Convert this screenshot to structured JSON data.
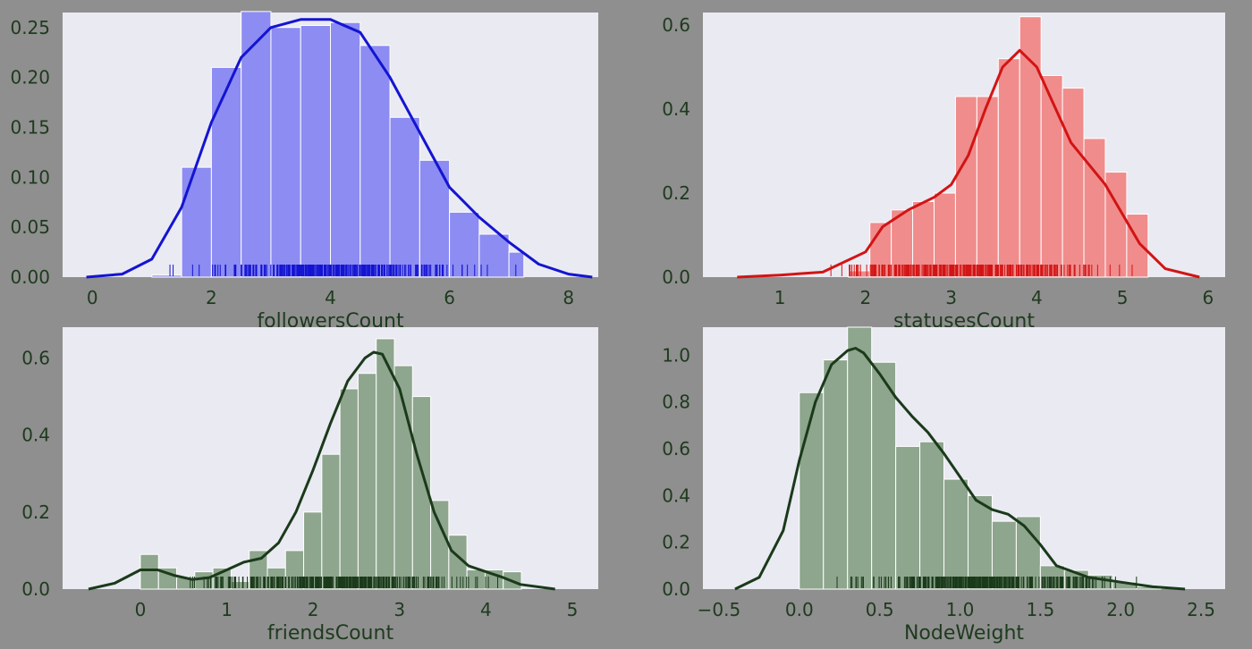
{
  "chart_data": [
    {
      "type": "bar",
      "xlabel": "followersCount",
      "ylabel": "",
      "xlim": [
        -0.5,
        8.5
      ],
      "ylim": [
        0,
        0.265
      ],
      "xticks": [
        0,
        2,
        4,
        6,
        8
      ],
      "xtick_labels": [
        "0",
        "2",
        "4",
        "6",
        "8"
      ],
      "yticks": [
        0,
        0.05,
        0.1,
        0.15,
        0.2,
        0.25
      ],
      "ytick_labels": [
        "0.00",
        "0.05",
        "0.10",
        "0.15",
        "0.20",
        "0.25"
      ],
      "bar_color": "#8c8cf2",
      "line_color": "#1414d2",
      "rug_color": "#1414d2",
      "bins": {
        "edges": [
          1.0,
          1.5,
          2.0,
          2.5,
          3.0,
          3.5,
          4.0,
          4.5,
          5.0,
          5.5,
          6.0,
          6.5,
          7.0,
          7.25
        ],
        "values": [
          0.002,
          0.11,
          0.21,
          0.266,
          0.25,
          0.252,
          0.255,
          0.232,
          0.16,
          0.117,
          0.065,
          0.043,
          0.025
        ]
      },
      "kde": {
        "x": [
          -0.1,
          0.5,
          1.0,
          1.5,
          2.0,
          2.5,
          3.0,
          3.5,
          4.0,
          4.5,
          5.0,
          5.5,
          6.0,
          6.5,
          7.0,
          7.5,
          8.0,
          8.4
        ],
        "y": [
          0.0,
          0.003,
          0.018,
          0.07,
          0.155,
          0.22,
          0.25,
          0.258,
          0.258,
          0.245,
          0.2,
          0.145,
          0.09,
          0.06,
          0.035,
          0.013,
          0.003,
          0.0
        ]
      },
      "rug_range": [
        1.0,
        7.2
      ]
    },
    {
      "type": "bar",
      "xlabel": "statusesCount",
      "ylabel": "",
      "xlim": [
        0.1,
        6.2
      ],
      "ylim": [
        0,
        0.63
      ],
      "xticks": [
        1,
        2,
        3,
        4,
        5,
        6
      ],
      "xtick_labels": [
        "1",
        "2",
        "3",
        "4",
        "5",
        "6"
      ],
      "yticks": [
        0,
        0.2,
        0.4,
        0.6
      ],
      "ytick_labels": [
        "0.0",
        "0.2",
        "0.4",
        "0.6"
      ],
      "bar_color": "#f08c8c",
      "line_color": "#d21414",
      "rug_color": "#d21414",
      "bins": {
        "edges": [
          1.8,
          2.05,
          2.3,
          2.55,
          2.8,
          3.05,
          3.3,
          3.55,
          3.8,
          4.05,
          4.3,
          4.55,
          4.8,
          5.05,
          5.3
        ],
        "values": [
          0.015,
          0.13,
          0.16,
          0.18,
          0.2,
          0.43,
          0.43,
          0.52,
          0.62,
          0.48,
          0.45,
          0.33,
          0.25,
          0.15
        ]
      },
      "kde": {
        "x": [
          0.5,
          1.0,
          1.5,
          2.0,
          2.2,
          2.5,
          2.8,
          3.0,
          3.2,
          3.4,
          3.6,
          3.8,
          4.0,
          4.2,
          4.4,
          4.6,
          4.8,
          5.0,
          5.2,
          5.5,
          5.9
        ],
        "y": [
          0.0,
          0.005,
          0.012,
          0.06,
          0.12,
          0.16,
          0.19,
          0.22,
          0.29,
          0.4,
          0.5,
          0.54,
          0.5,
          0.41,
          0.32,
          0.27,
          0.22,
          0.15,
          0.08,
          0.02,
          0.0
        ]
      },
      "rug_range": [
        1.1,
        5.3
      ]
    },
    {
      "type": "bar",
      "xlabel": "friendsCount",
      "ylabel": "",
      "xlim": [
        -0.9,
        5.3
      ],
      "ylim": [
        0,
        0.68
      ],
      "xticks": [
        0,
        1,
        2,
        3,
        4,
        5
      ],
      "xtick_labels": [
        "0",
        "1",
        "2",
        "3",
        "4",
        "5"
      ],
      "yticks": [
        0,
        0.2,
        0.4,
        0.6
      ],
      "ytick_labels": [
        "0.0",
        "0.2",
        "0.4",
        "0.6"
      ],
      "bar_color": "#8ea58e",
      "line_color": "#1a3a1a",
      "rug_color": "#1a3a1a",
      "bins": {
        "edges": [
          0,
          0.21,
          0.42,
          0.63,
          0.84,
          1.05,
          1.26,
          1.47,
          1.68,
          1.89,
          2.1,
          2.31,
          2.52,
          2.73,
          2.94,
          3.15,
          3.36,
          3.57,
          3.78,
          3.99,
          4.2,
          4.41
        ],
        "values": [
          0.09,
          0.055,
          0.03,
          0.045,
          0.055,
          0.02,
          0.1,
          0.055,
          0.1,
          0.2,
          0.35,
          0.52,
          0.56,
          0.65,
          0.58,
          0.5,
          0.23,
          0.14,
          0.05,
          0.05,
          0.045
        ]
      },
      "kde": {
        "x": [
          -0.6,
          -0.3,
          0.0,
          0.2,
          0.4,
          0.6,
          0.8,
          1.0,
          1.2,
          1.4,
          1.6,
          1.8,
          2.0,
          2.2,
          2.4,
          2.6,
          2.7,
          2.8,
          3.0,
          3.2,
          3.4,
          3.6,
          3.8,
          4.0,
          4.2,
          4.4,
          4.8
        ],
        "y": [
          0.0,
          0.015,
          0.05,
          0.05,
          0.035,
          0.025,
          0.03,
          0.05,
          0.07,
          0.08,
          0.12,
          0.2,
          0.31,
          0.43,
          0.54,
          0.6,
          0.615,
          0.61,
          0.52,
          0.35,
          0.2,
          0.1,
          0.06,
          0.045,
          0.03,
          0.012,
          0.0
        ]
      },
      "rug_range": [
        0.0,
        4.4
      ]
    },
    {
      "type": "bar",
      "xlabel": "NodeWeight",
      "ylabel": "",
      "xlim": [
        -0.6,
        2.65
      ],
      "ylim": [
        0,
        1.12
      ],
      "xticks": [
        -0.5,
        0.0,
        0.5,
        1.0,
        1.5,
        2.0,
        2.5
      ],
      "xtick_labels": [
        "−0.5",
        "0.0",
        "0.5",
        "1.0",
        "1.5",
        "2.0",
        "2.5"
      ],
      "yticks": [
        0,
        0.2,
        0.4,
        0.6,
        0.8,
        1.0
      ],
      "ytick_labels": [
        "0.0",
        "0.2",
        "0.4",
        "0.6",
        "0.8",
        "1.0"
      ],
      "bar_color": "#8ea58e",
      "line_color": "#1a3a1a",
      "rug_color": "#1a3a1a",
      "bins": {
        "edges": [
          0.0,
          0.15,
          0.3,
          0.45,
          0.6,
          0.75,
          0.9,
          1.05,
          1.2,
          1.35,
          1.5,
          1.65,
          1.8,
          1.95,
          2.1,
          2.25
        ],
        "values": [
          0.84,
          0.98,
          1.12,
          0.97,
          0.61,
          0.63,
          0.47,
          0.4,
          0.29,
          0.31,
          0.1,
          0.08,
          0.06,
          0.03,
          0.01
        ]
      },
      "kde": {
        "x": [
          -0.4,
          -0.25,
          -0.1,
          0.0,
          0.1,
          0.2,
          0.3,
          0.35,
          0.4,
          0.5,
          0.6,
          0.7,
          0.8,
          0.9,
          1.0,
          1.1,
          1.2,
          1.3,
          1.4,
          1.5,
          1.6,
          1.8,
          2.0,
          2.2,
          2.4
        ],
        "y": [
          0.0,
          0.05,
          0.25,
          0.55,
          0.8,
          0.96,
          1.02,
          1.03,
          1.01,
          0.92,
          0.82,
          0.74,
          0.67,
          0.58,
          0.48,
          0.38,
          0.34,
          0.32,
          0.27,
          0.19,
          0.1,
          0.05,
          0.03,
          0.01,
          0.0
        ]
      },
      "rug_range": [
        0.03,
        2.2
      ]
    }
  ]
}
